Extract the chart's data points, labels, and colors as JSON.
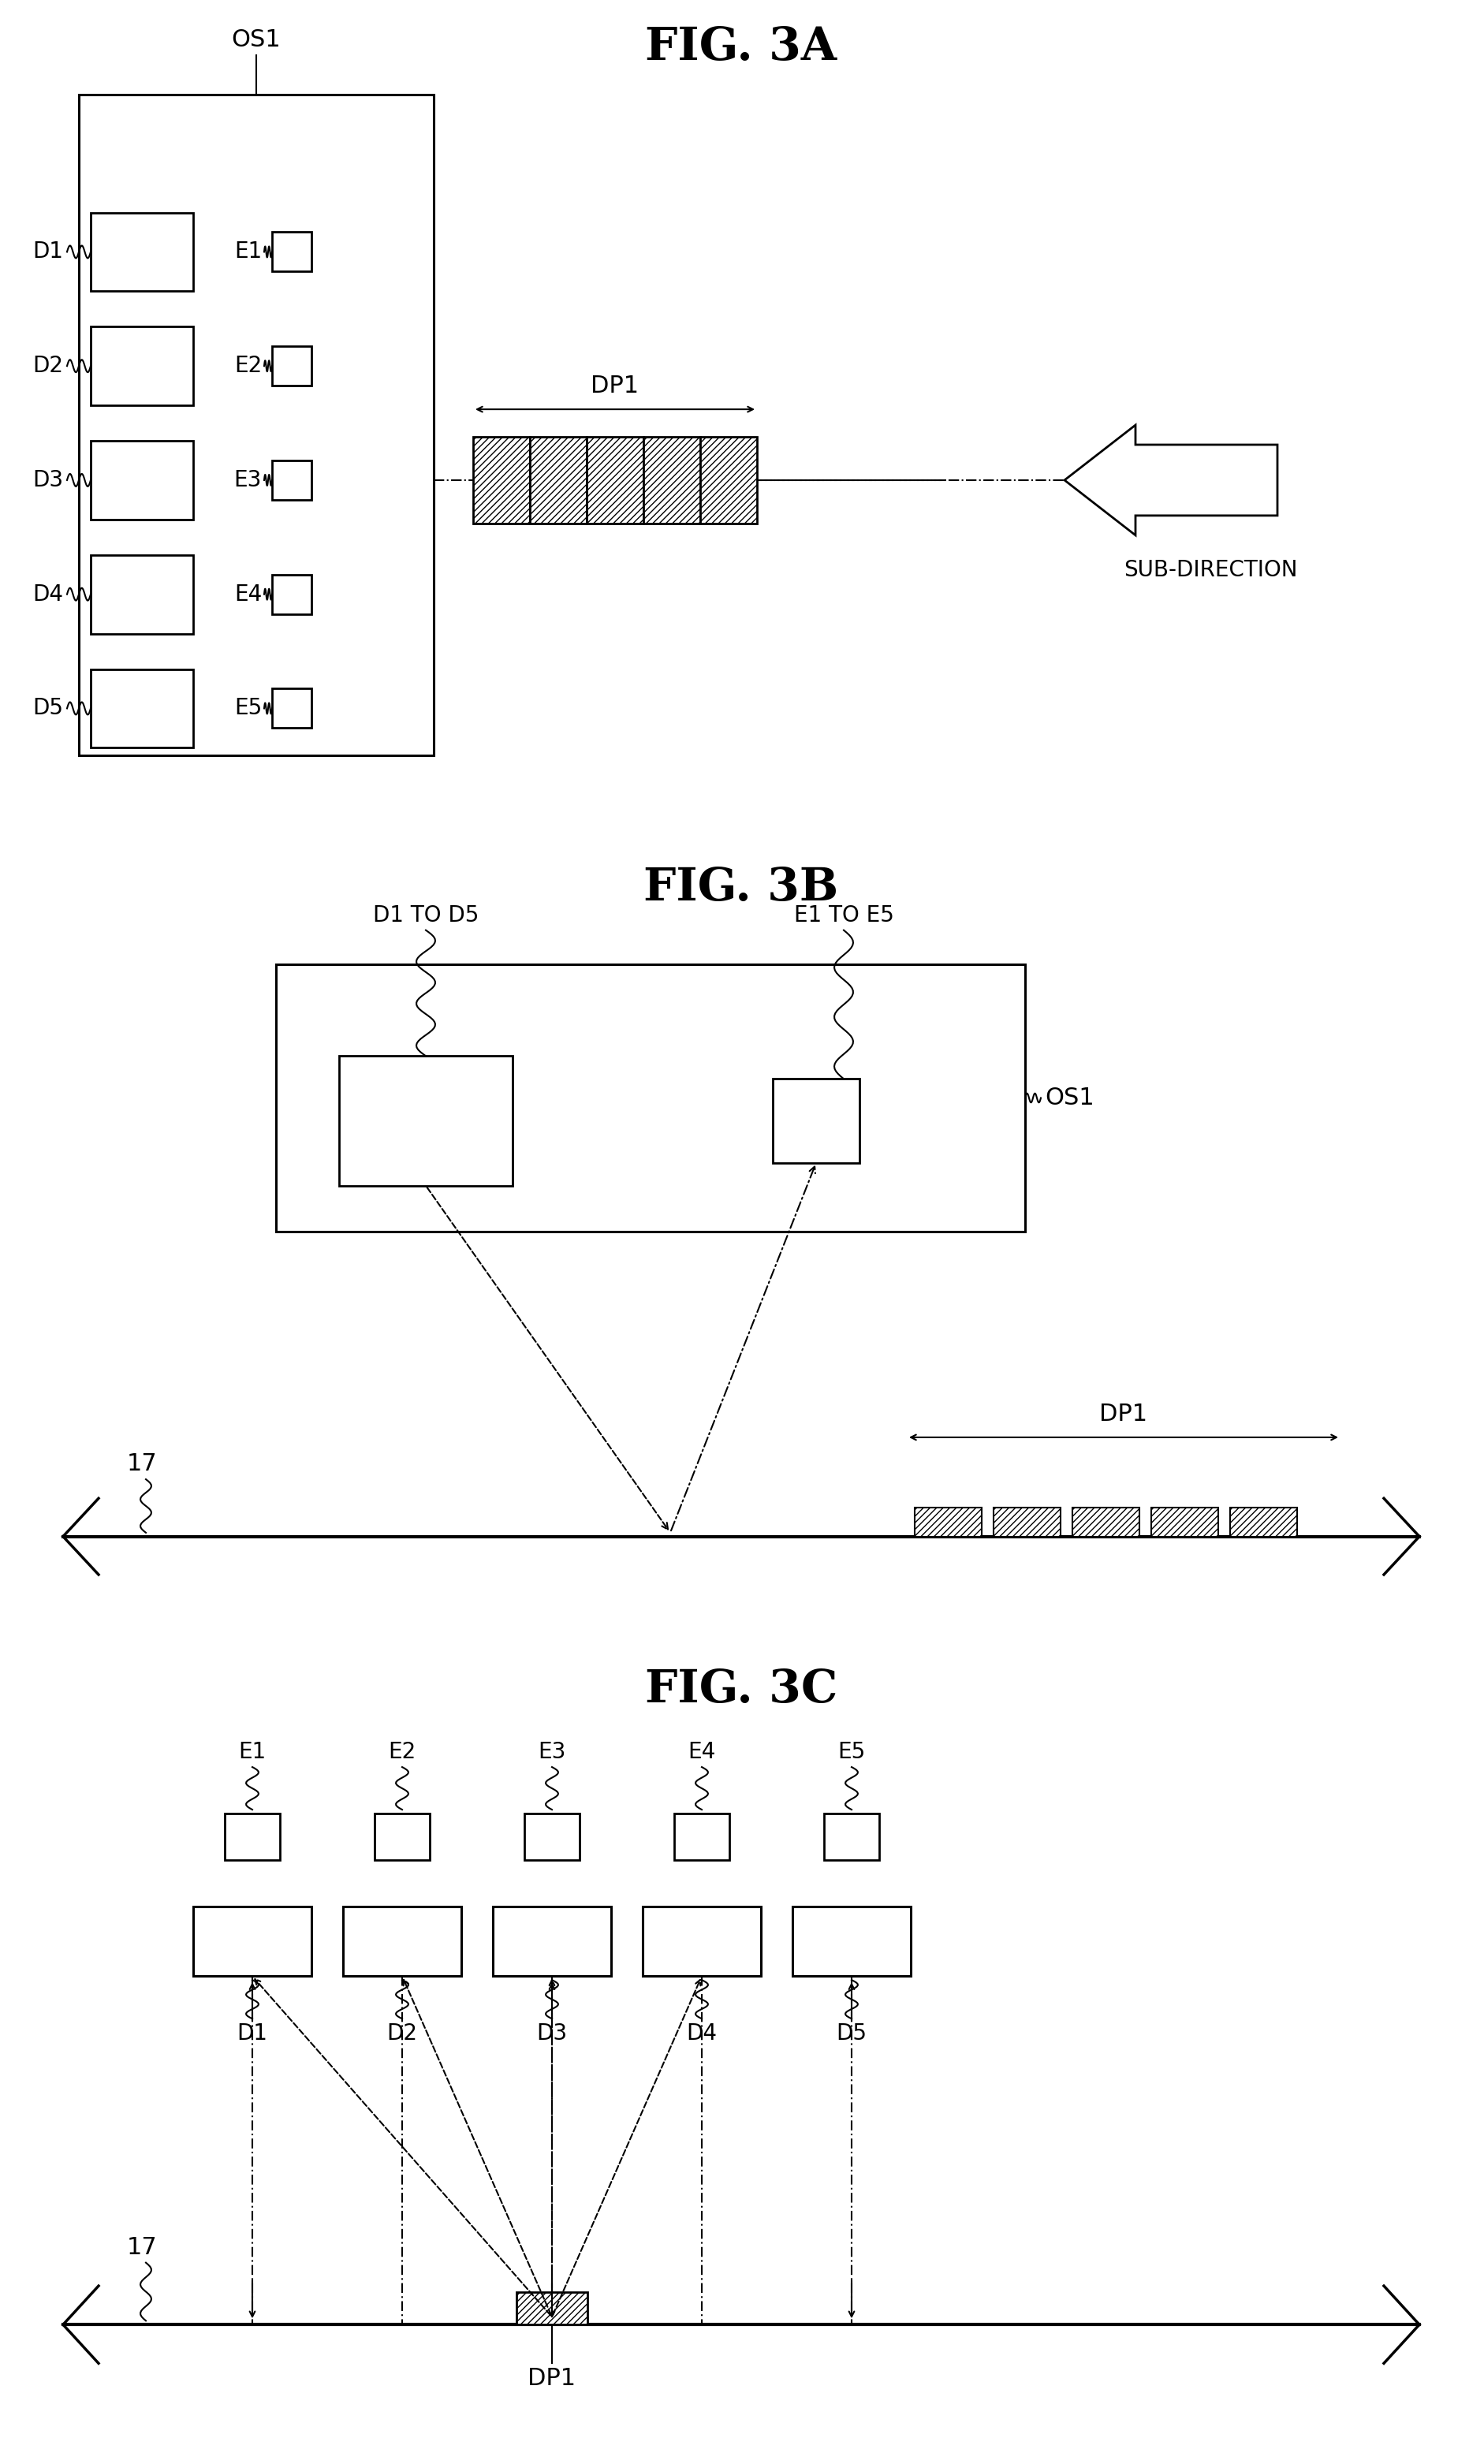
{
  "fig3a_title": "FIG. 3A",
  "fig3b_title": "FIG. 3B",
  "fig3c_title": "FIG. 3C",
  "background_color": "#ffffff",
  "line_color": "#000000",
  "hatch_pattern": "////",
  "labels_D": [
    "D1",
    "D2",
    "D3",
    "D4",
    "D5"
  ],
  "labels_E": [
    "E1",
    "E2",
    "E3",
    "E4",
    "E5"
  ],
  "label_OS1": "OS1",
  "label_DP1": "DP1",
  "label_17": "17",
  "label_subdirection": "SUB-DIRECTION",
  "label_D1toD5": "D1 TO D5",
  "label_E1toE5": "E1 TO E5"
}
